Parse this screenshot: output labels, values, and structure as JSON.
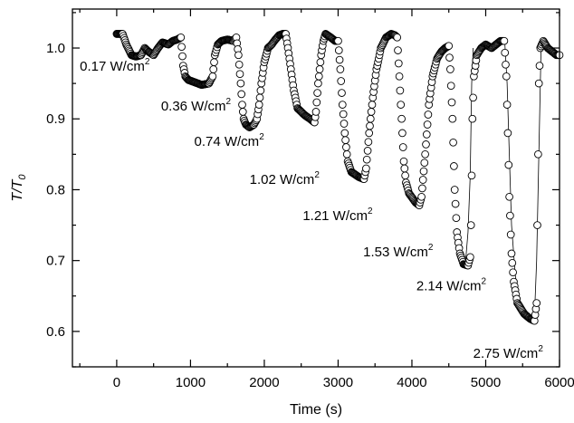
{
  "chart_data": {
    "type": "scatter",
    "title": "",
    "xlabel": "Time (s)",
    "ylabel_main": "T/T",
    "ylabel_sub": "0",
    "xlim": [
      -600,
      6000
    ],
    "ylim": [
      0.55,
      1.055
    ],
    "xticks": [
      0,
      1000,
      2000,
      3000,
      4000,
      5000,
      6000
    ],
    "yticks": [
      0.6,
      0.7,
      0.8,
      0.9,
      1.0
    ],
    "ytick_labels": [
      "0.6",
      "0.7",
      "0.8",
      "0.9",
      "1.0"
    ],
    "grid": false,
    "legend": "none",
    "marker": "open-circle",
    "series": [
      {
        "values": [
          [
            0,
            1.02
          ],
          [
            80,
            1.02
          ],
          [
            130,
            1.005
          ],
          [
            200,
            0.99
          ],
          [
            260,
            0.988
          ],
          [
            330,
            0.99
          ],
          [
            380,
            1.0
          ],
          [
            430,
            0.995
          ],
          [
            500,
            0.99
          ],
          [
            560,
            1.0
          ],
          [
            620,
            1.008
          ],
          [
            700,
            1.005
          ],
          [
            760,
            1.01
          ],
          [
            820,
            1.012
          ],
          [
            870,
            1.015
          ],
          [
            900,
            0.975
          ],
          [
            930,
            0.96
          ],
          [
            970,
            0.955
          ],
          [
            1050,
            0.952
          ],
          [
            1150,
            0.948
          ],
          [
            1250,
            0.95
          ],
          [
            1300,
            0.96
          ],
          [
            1330,
            0.99
          ],
          [
            1370,
            1.005
          ],
          [
            1420,
            1.01
          ],
          [
            1500,
            1.012
          ],
          [
            1580,
            1.01
          ],
          [
            1620,
            1.015
          ],
          [
            1650,
            0.99
          ],
          [
            1680,
            0.95
          ],
          [
            1700,
            0.92
          ],
          [
            1720,
            0.9
          ],
          [
            1750,
            0.892
          ],
          [
            1800,
            0.888
          ],
          [
            1860,
            0.892
          ],
          [
            1900,
            0.9
          ],
          [
            1930,
            0.92
          ],
          [
            1960,
            0.95
          ],
          [
            2000,
            0.98
          ],
          [
            2050,
            1.0
          ],
          [
            2100,
            1.005
          ],
          [
            2150,
            1.012
          ],
          [
            2200,
            1.018
          ],
          [
            2250,
            1.02
          ],
          [
            2290,
            1.02
          ],
          [
            2320,
            1.0
          ],
          [
            2360,
            0.97
          ],
          [
            2400,
            0.94
          ],
          [
            2450,
            0.915
          ],
          [
            2550,
            0.905
          ],
          [
            2620,
            0.9
          ],
          [
            2680,
            0.895
          ],
          [
            2700,
            0.91
          ],
          [
            2730,
            0.95
          ],
          [
            2770,
            0.99
          ],
          [
            2800,
            1.01
          ],
          [
            2830,
            1.02
          ],
          [
            2900,
            1.015
          ],
          [
            2960,
            1.01
          ],
          [
            3000,
            1.01
          ],
          [
            3030,
            0.97
          ],
          [
            3060,
            0.92
          ],
          [
            3090,
            0.88
          ],
          [
            3130,
            0.84
          ],
          [
            3180,
            0.825
          ],
          [
            3280,
            0.818
          ],
          [
            3350,
            0.815
          ],
          [
            3380,
            0.83
          ],
          [
            3420,
            0.88
          ],
          [
            3470,
            0.93
          ],
          [
            3520,
            0.97
          ],
          [
            3580,
            1.0
          ],
          [
            3650,
            1.015
          ],
          [
            3720,
            1.02
          ],
          [
            3770,
            1.018
          ],
          [
            3800,
            1.015
          ],
          [
            3830,
            0.96
          ],
          [
            3860,
            0.9
          ],
          [
            3890,
            0.84
          ],
          [
            3920,
            0.81
          ],
          [
            3960,
            0.795
          ],
          [
            4050,
            0.782
          ],
          [
            4100,
            0.778
          ],
          [
            4130,
            0.79
          ],
          [
            4180,
            0.85
          ],
          [
            4230,
            0.92
          ],
          [
            4280,
            0.96
          ],
          [
            4340,
            0.985
          ],
          [
            4400,
            0.995
          ],
          [
            4450,
            1.0
          ],
          [
            4500,
            1.003
          ],
          [
            4520,
            0.97
          ],
          [
            4550,
            0.9
          ],
          [
            4580,
            0.8
          ],
          [
            4610,
            0.74
          ],
          [
            4650,
            0.71
          ],
          [
            4700,
            0.695
          ],
          [
            4760,
            0.693
          ],
          [
            4790,
            0.705
          ],
          [
            4800,
            0.75
          ],
          [
            4810,
            0.82
          ],
          [
            4820,
            0.9
          ],
          [
            4840,
            0.96
          ],
          [
            4880,
            0.99
          ],
          [
            4940,
            1.0
          ],
          [
            5000,
            1.005
          ],
          [
            5080,
            1.0
          ],
          [
            5140,
            1.005
          ],
          [
            5200,
            1.01
          ],
          [
            5250,
            1.01
          ],
          [
            5280,
            0.96
          ],
          [
            5300,
            0.88
          ],
          [
            5320,
            0.79
          ],
          [
            5350,
            0.71
          ],
          [
            5380,
            0.67
          ],
          [
            5430,
            0.64
          ],
          [
            5520,
            0.625
          ],
          [
            5600,
            0.618
          ],
          [
            5660,
            0.615
          ],
          [
            5690,
            0.64
          ],
          [
            5700,
            0.75
          ],
          [
            5710,
            0.85
          ],
          [
            5720,
            0.95
          ],
          [
            5740,
            1.0
          ],
          [
            5780,
            1.01
          ],
          [
            5840,
            1.0
          ],
          [
            5900,
            0.995
          ],
          [
            5960,
            0.99
          ],
          [
            6000,
            0.99
          ]
        ]
      }
    ],
    "connecting_lines": [
      [
        [
          4720,
          0.69
        ],
        [
          4760,
          0.74
        ],
        [
          4790,
          0.82
        ],
        [
          4810,
          0.95
        ],
        [
          4830,
          1.0
        ]
      ],
      [
        [
          5260,
          1.005
        ],
        [
          5290,
          0.95
        ],
        [
          5320,
          0.85
        ],
        [
          5350,
          0.75
        ],
        [
          5400,
          0.68
        ],
        [
          5470,
          0.63
        ],
        [
          5560,
          0.62
        ]
      ],
      [
        [
          5660,
          0.62
        ],
        [
          5690,
          0.7
        ],
        [
          5710,
          0.8
        ],
        [
          5730,
          0.9
        ],
        [
          5750,
          1.0
        ],
        [
          5790,
          1.012
        ]
      ]
    ],
    "annotations": [
      {
        "text": "0.17 W/cm",
        "sup": "2",
        "x": -500,
        "y": 0.968
      },
      {
        "text": "0.36 W/cm",
        "sup": "2",
        "x": 600,
        "y": 0.912
      },
      {
        "text": "0.74 W/cm",
        "sup": "2",
        "x": 1050,
        "y": 0.862
      },
      {
        "text": "1.02 W/cm",
        "sup": "2",
        "x": 1800,
        "y": 0.808
      },
      {
        "text": "1.21 W/cm",
        "sup": "2",
        "x": 2520,
        "y": 0.757
      },
      {
        "text": "1.53 W/cm",
        "sup": "2",
        "x": 3340,
        "y": 0.706
      },
      {
        "text": "2.14 W/cm",
        "sup": "2",
        "x": 4060,
        "y": 0.658
      },
      {
        "text": "2.75 W/cm",
        "sup": "2",
        "x": 4830,
        "y": 0.563
      }
    ]
  }
}
